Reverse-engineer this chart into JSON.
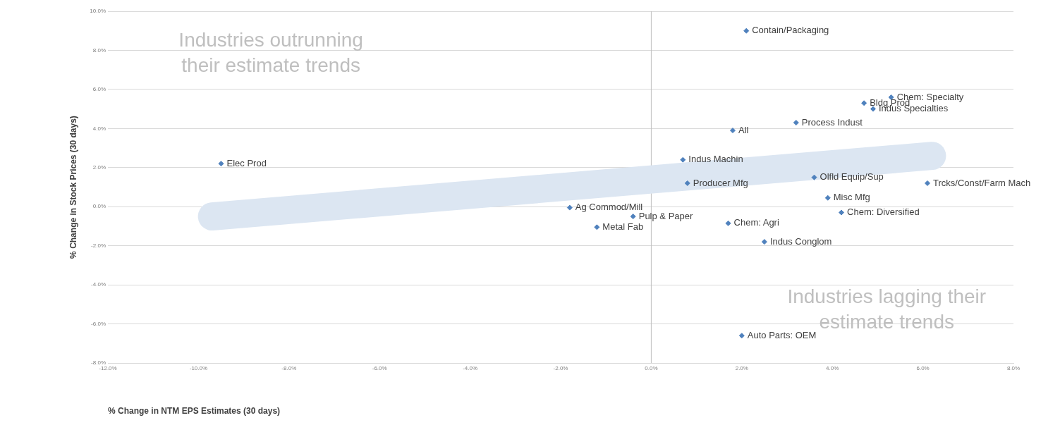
{
  "chart_data": {
    "type": "scatter",
    "xlabel": "% Change in NTM EPS Estimates (30 days)",
    "ylabel": "% Change in Stock Prices (30 days)",
    "xlim": [
      -12,
      8
    ],
    "xticks": [
      {
        "value": -12,
        "label": "-12.0%"
      },
      {
        "value": -10,
        "label": "-10.0%"
      },
      {
        "value": -8,
        "label": "-8.0%"
      },
      {
        "value": -6,
        "label": "-6.0%"
      },
      {
        "value": -4,
        "label": "-4.0%"
      },
      {
        "value": -2,
        "label": "-2.0%"
      },
      {
        "value": 0,
        "label": "0.0%"
      },
      {
        "value": 2,
        "label": "2.0%"
      },
      {
        "value": 4,
        "label": "4.0%"
      },
      {
        "value": 6,
        "label": "6.0%"
      },
      {
        "value": 8,
        "label": "8.0%"
      }
    ],
    "ylim": [
      -8,
      10
    ],
    "yticks": [
      {
        "value": -8,
        "label": "-8.0%"
      },
      {
        "value": -6,
        "label": "-6.0%"
      },
      {
        "value": -4,
        "label": "-4.0%"
      },
      {
        "value": -2,
        "label": "-2.0%"
      },
      {
        "value": 0,
        "label": "0.0%"
      },
      {
        "value": 2,
        "label": "2.0%"
      },
      {
        "value": 4,
        "label": "4.0%"
      },
      {
        "value": 6,
        "label": "6.0%"
      },
      {
        "value": 8,
        "label": "8.0%"
      },
      {
        "value": 10,
        "label": "10.0%"
      }
    ],
    "grid": "y",
    "legend": false,
    "marker": "diamond",
    "ref_lines": [
      {
        "axis": "x",
        "value": 0,
        "color": "#bfbfbf"
      }
    ],
    "series": [
      {
        "type": "line",
        "marker": "none",
        "color": "#dce6f2",
        "x": [
          -9.7,
          6.2
        ],
        "values": [
          -0.5,
          2.6
        ]
      },
      {
        "type": "scatter",
        "color": "#4f81bd",
        "x": [
          2.1,
          5.3,
          4.7,
          4.9,
          3.2,
          1.8,
          -9.5,
          0.7,
          3.6,
          0.8,
          6.1,
          3.9,
          -1.8,
          4.2,
          -0.4,
          -1.2,
          1.7,
          2.5,
          2.0
        ],
        "values": [
          9.0,
          5.6,
          5.3,
          5.0,
          4.3,
          3.9,
          2.2,
          2.4,
          1.5,
          1.2,
          1.2,
          0.45,
          -0.05,
          -0.3,
          -0.5,
          -1.05,
          -0.85,
          -1.8,
          -6.6
        ],
        "value_labels": [
          "Contain/Packaging",
          "Chem: Specialty",
          "Bldg Prod",
          "Indus Specialties",
          "Process Indust",
          "All",
          "Elec Prod",
          "Indus Machin",
          "Olfld Equip/Sup",
          "Producer Mfg",
          "Trcks/Const/Farm Mach",
          "Misc Mfg",
          "Ag Commod/Mill",
          "Chem: Diversified",
          "Pulp & Paper",
          "Metal Fab",
          "Chem: Agri",
          "Indus Conglom",
          "Auto Parts: OEM"
        ]
      }
    ],
    "annotations": [
      "Industries outrunning their estimate trends",
      "Industries lagging their estimate trends"
    ]
  }
}
